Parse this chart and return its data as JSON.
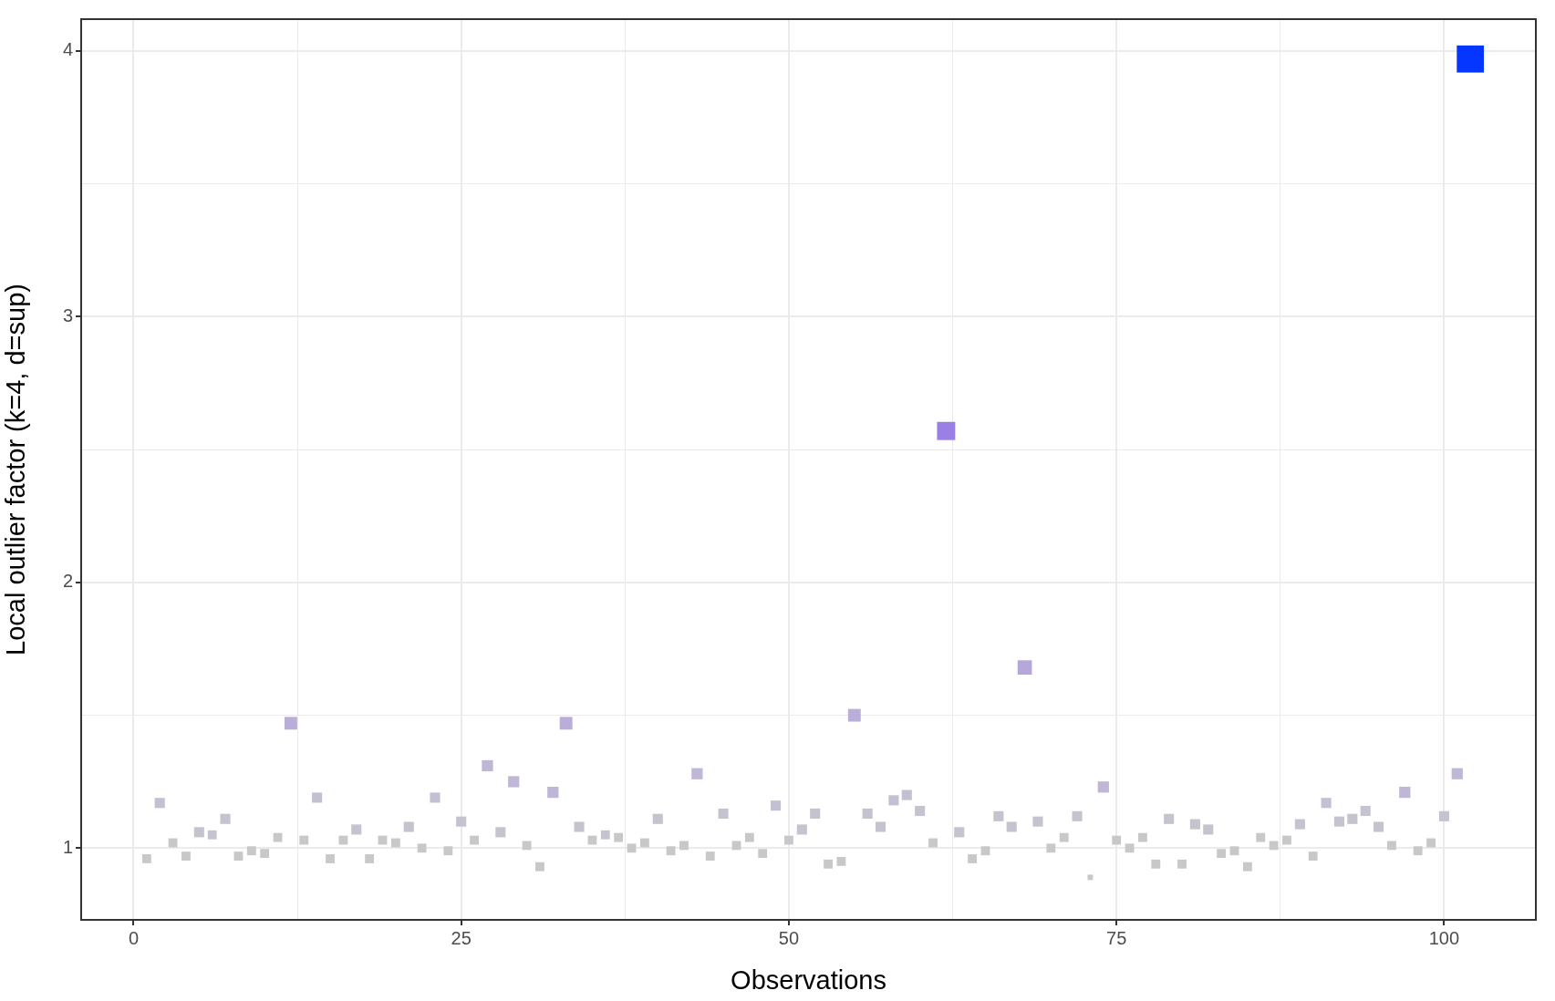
{
  "chart_data": {
    "type": "bubble",
    "sizes": [
      0.11,
      0.14,
      0.11,
      0.11,
      0.14,
      0.11,
      0.14,
      0.11,
      0.11,
      0.11,
      0.11,
      0.22,
      0.11,
      0.14,
      0.11,
      0.11,
      0.14,
      0.11,
      0.11,
      0.11,
      0.14,
      0.11,
      0.14,
      0.11,
      0.14,
      0.11,
      0.17,
      0.14,
      0.17,
      0.11,
      0.11,
      0.17,
      0.22,
      0.14,
      0.11,
      0.11,
      0.11,
      0.11,
      0.11,
      0.14,
      0.11,
      0.11,
      0.17,
      0.11,
      0.14,
      0.11,
      0.11,
      0.11,
      0.14,
      0.11,
      0.14,
      0.14,
      0.11,
      0.11,
      0.22,
      0.14,
      0.14,
      0.14,
      0.14,
      0.14,
      0.11,
      0.45,
      0.14,
      0.11,
      0.11,
      0.14,
      0.14,
      0.28,
      0.14,
      0.11,
      0.11,
      0.14,
      0.04,
      0.17,
      0.11,
      0.11,
      0.11,
      0.11,
      0.14,
      0.11,
      0.14,
      0.14,
      0.11,
      0.11,
      0.11,
      0.11,
      0.11,
      0.11,
      0.14,
      0.11,
      0.14,
      0.14,
      0.14,
      0.14,
      0.14,
      0.11,
      0.17,
      0.11,
      0.11,
      0.14,
      0.17,
      1
    ],
    "xlabel": "Observations",
    "ylabel": "Local outlier factor (k=4, d=sup)",
    "marker": "square",
    "grid": true,
    "legend": false,
    "xlim": [
      -4,
      107
    ],
    "xticks": [
      0,
      {
        "value": 12.5,
        "label": null
      },
      25,
      {
        "value": 37.5,
        "label": null
      },
      50,
      {
        "value": 62.5,
        "label": null
      },
      75,
      {
        "value": 87.5,
        "label": null
      },
      100
    ],
    "ylim": [
      0.73,
      4.12
    ],
    "yticks": [
      1,
      {
        "value": 1.5,
        "label": null
      },
      2,
      {
        "value": 2.5,
        "label": null
      },
      3,
      {
        "value": 3.5,
        "label": null
      },
      4
    ],
    "x": [
      1,
      2,
      3,
      4,
      5,
      6,
      7,
      8,
      9,
      10,
      11,
      12,
      13,
      14,
      15,
      16,
      17,
      18,
      19,
      20,
      21,
      22,
      23,
      24,
      25,
      26,
      27,
      28,
      29,
      30,
      31,
      32,
      33,
      34,
      35,
      36,
      37,
      38,
      39,
      40,
      41,
      42,
      43,
      44,
      45,
      46,
      47,
      48,
      49,
      50,
      51,
      52,
      53,
      54,
      55,
      56,
      57,
      58,
      59,
      60,
      61,
      62,
      63,
      64,
      65,
      66,
      67,
      68,
      69,
      70,
      71,
      72,
      73,
      74,
      75,
      76,
      77,
      78,
      79,
      80,
      81,
      82,
      83,
      84,
      85,
      86,
      87,
      88,
      89,
      90,
      91,
      92,
      93,
      94,
      95,
      96,
      97,
      98,
      99,
      100,
      101,
      102
    ],
    "values": [
      0.96,
      1.17,
      1.02,
      0.97,
      1.06,
      1.05,
      1.11,
      0.97,
      0.99,
      0.98,
      1.04,
      1.47,
      1.03,
      1.19,
      0.96,
      1.03,
      1.07,
      0.96,
      1.03,
      1.02,
      1.08,
      1.0,
      1.19,
      0.99,
      1.1,
      1.03,
      1.31,
      1.06,
      1.25,
      1.01,
      0.93,
      1.21,
      1.47,
      1.08,
      1.03,
      1.05,
      1.04,
      1.0,
      1.02,
      1.11,
      0.99,
      1.01,
      1.28,
      0.97,
      1.13,
      1.01,
      1.04,
      0.98,
      1.16,
      1.03,
      1.07,
      1.13,
      0.94,
      0.95,
      1.5,
      1.13,
      1.08,
      1.18,
      1.2,
      1.14,
      1.02,
      2.57,
      1.06,
      0.96,
      0.99,
      1.12,
      1.08,
      1.68,
      1.1,
      1.0,
      1.04,
      1.12,
      0.89,
      1.23,
      1.03,
      1.0,
      1.04,
      0.94,
      1.11,
      0.94,
      1.09,
      1.07,
      0.98,
      0.99,
      0.93,
      1.04,
      1.01,
      1.03,
      1.09,
      0.97,
      1.17,
      1.1,
      1.11,
      1.14,
      1.08,
      1.01,
      1.21,
      0.99,
      1.02,
      1.12,
      1.28,
      3.97
    ],
    "colors": [
      "#c8c8ca",
      "#c4bfd2",
      "#c8c8ca",
      "#c8c8ca",
      "#c6c3cf",
      "#c6c3cf",
      "#c6c3cf",
      "#c8c8ca",
      "#c8c8ca",
      "#c8c8ca",
      "#c8c8ca",
      "#baadd8",
      "#c8c8ca",
      "#c4bfd2",
      "#c8c8ca",
      "#c8c8ca",
      "#c6c3cf",
      "#c8c8ca",
      "#c8c8ca",
      "#c8c8ca",
      "#c6c3cf",
      "#c8c8ca",
      "#c4bfd2",
      "#c8c8ca",
      "#c6c3cf",
      "#c8c8ca",
      "#c0b6d6",
      "#c6c3cf",
      "#c0b6d6",
      "#c8c8ca",
      "#c8c8ca",
      "#c0b6d6",
      "#baadd8",
      "#c6c3cf",
      "#c8c8ca",
      "#c6c3cf",
      "#c8c8ca",
      "#c8c8ca",
      "#c8c8ca",
      "#c6c3cf",
      "#c8c8ca",
      "#c8c8ca",
      "#c0b6d6",
      "#c8c8ca",
      "#c6c3cf",
      "#c8c8ca",
      "#c8c8ca",
      "#c8c8ca",
      "#c4bfd2",
      "#c8c8ca",
      "#c6c3cf",
      "#c6c3cf",
      "#c8c8ca",
      "#c8c8ca",
      "#baadd8",
      "#c6c3cf",
      "#c6c3cf",
      "#c4bfd2",
      "#c4bfd2",
      "#c6c3cf",
      "#c8c8ca",
      "#9a80e4",
      "#c6c3cf",
      "#c8c8ca",
      "#c8c8ca",
      "#c6c3cf",
      "#c6c3cf",
      "#b6a6da",
      "#c6c3cf",
      "#c8c8ca",
      "#c8c8ca",
      "#c6c3cf",
      "#c8c8ca",
      "#c0b6d6",
      "#c8c8ca",
      "#c8c8ca",
      "#c8c8ca",
      "#c8c8ca",
      "#c6c3cf",
      "#c8c8ca",
      "#c6c3cf",
      "#c6c3cf",
      "#c8c8ca",
      "#c8c8ca",
      "#c8c8ca",
      "#c8c8ca",
      "#c8c8ca",
      "#c8c8ca",
      "#c6c3cf",
      "#c8c8ca",
      "#c4bfd2",
      "#c6c3cf",
      "#c6c3cf",
      "#c6c3cf",
      "#c6c3cf",
      "#c8c8ca",
      "#c0b6d6",
      "#c8c8ca",
      "#c8c8ca",
      "#c6c3cf",
      "#c0b6d6",
      "#0536ff"
    ]
  }
}
